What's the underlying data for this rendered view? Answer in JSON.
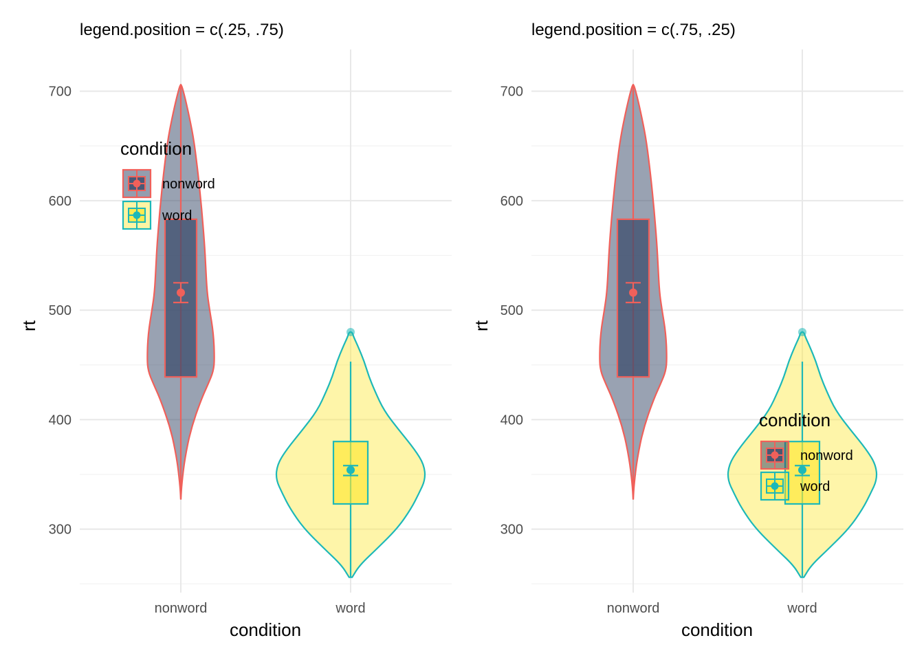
{
  "chart_data": [
    {
      "type": "violin",
      "title": "legend.position = c(.25, .75)",
      "xlabel": "condition",
      "ylabel": "rt",
      "categories": [
        "nonword",
        "word"
      ],
      "y_ticks": [
        300,
        400,
        500,
        600,
        700
      ],
      "ylim": [
        242,
        728
      ],
      "grid": true,
      "legend": {
        "title": "condition",
        "placement": "top-left",
        "entries": [
          "nonword",
          "word"
        ]
      },
      "series": [
        {
          "name": "nonword",
          "violin": {
            "min": 327,
            "max": 706
          },
          "box": {
            "lower": 439,
            "upper": 583,
            "whisker_low": 327,
            "whisker_high": 706
          },
          "mean": 516,
          "ci": [
            507,
            525
          ]
        },
        {
          "name": "word",
          "violin": {
            "min": 256,
            "max": 480
          },
          "box": {
            "lower": 323,
            "upper": 380,
            "whisker_low": 256,
            "whisker_high": 453
          },
          "mean": 354,
          "ci": [
            349,
            358
          ],
          "outliers": [
            480
          ]
        }
      ]
    },
    {
      "type": "violin",
      "title": "legend.position = c(.75, .25)",
      "xlabel": "condition",
      "ylabel": "rt",
      "categories": [
        "nonword",
        "word"
      ],
      "y_ticks": [
        300,
        400,
        500,
        600,
        700
      ],
      "ylim": [
        242,
        728
      ],
      "grid": true,
      "legend": {
        "title": "condition",
        "placement": "bottom-right",
        "entries": [
          "nonword",
          "word"
        ]
      },
      "series": [
        {
          "name": "nonword",
          "violin": {
            "min": 327,
            "max": 706
          },
          "box": {
            "lower": 439,
            "upper": 583,
            "whisker_low": 327,
            "whisker_high": 706
          },
          "mean": 516,
          "ci": [
            507,
            525
          ]
        },
        {
          "name": "word",
          "violin": {
            "min": 256,
            "max": 480
          },
          "box": {
            "lower": 323,
            "upper": 380,
            "whisker_low": 256,
            "whisker_high": 453
          },
          "mean": 354,
          "ci": [
            349,
            358
          ],
          "outliers": [
            480
          ]
        }
      ]
    }
  ],
  "colors": {
    "nonword_line": "#f0605a",
    "nonword_fill": "#3c4c6c",
    "word_line": "#1db8b8",
    "word_fill": "#fde733",
    "grid": "#e8e8e8",
    "grid_minor": "#f2f2f2"
  }
}
